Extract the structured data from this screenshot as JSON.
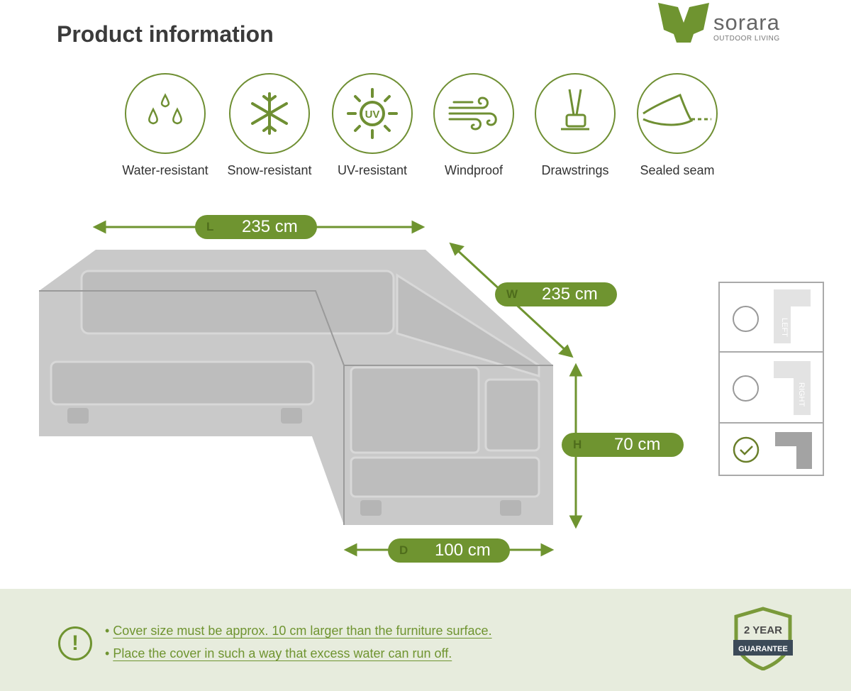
{
  "header": {
    "title": "Product information"
  },
  "logo": {
    "brand": "sorara",
    "tagline": "OUTDOOR LIVING",
    "registered": "®"
  },
  "features": [
    {
      "icon": "water-drops-icon",
      "label": "Water-resistant"
    },
    {
      "icon": "snowflake-icon",
      "label": "Snow-resistant"
    },
    {
      "icon": "uv-sun-icon",
      "label": "UV-resistant",
      "icon_text": "UV"
    },
    {
      "icon": "wind-icon",
      "label": "Windproof"
    },
    {
      "icon": "drawstring-icon",
      "label": "Drawstrings"
    },
    {
      "icon": "sealed-seam-icon",
      "label": "Sealed seam"
    }
  ],
  "dimensions": {
    "length": {
      "key": "L",
      "value": "235 cm"
    },
    "width": {
      "key": "W",
      "value": "235 cm"
    },
    "height": {
      "key": "H",
      "value": "70 cm"
    },
    "depth": {
      "key": "D",
      "value": "100 cm"
    }
  },
  "orientation": {
    "options": [
      {
        "label": "LEFT",
        "selected": false
      },
      {
        "label": "RIGHT",
        "selected": false
      },
      {
        "label": "",
        "selected": true
      }
    ]
  },
  "footer": {
    "notes": [
      "Cover size must be approx. 10 cm larger than the furniture surface.",
      "Place the cover in such a way that excess water can run off."
    ],
    "badge": {
      "line1": "2 YEAR",
      "line2": "GUARANTEE"
    }
  },
  "colors": {
    "accent": "#6f9430",
    "footer_bg": "#e7ecdd",
    "cover_gray": "#c9c9c9"
  }
}
